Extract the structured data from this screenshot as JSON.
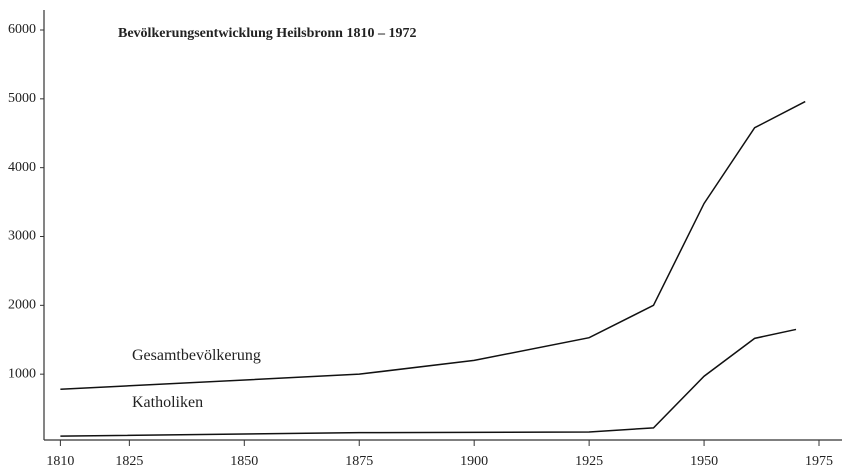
{
  "chart_data": {
    "type": "line",
    "title": "Bevölkerungsentwicklung Heilsbronn 1810 – 1972",
    "series": [
      {
        "name": "Gesamtbevölkerung",
        "color": "#111111",
        "x": [
          1810,
          1875,
          1900,
          1925,
          1939,
          1950,
          1961,
          1972
        ],
        "values": [
          780,
          1000,
          1200,
          1530,
          2000,
          3480,
          4580,
          4960
        ]
      },
      {
        "name": "Katholiken",
        "color": "#111111",
        "x": [
          1810,
          1875,
          1925,
          1939,
          1950,
          1961,
          1970
        ],
        "values": [
          100,
          150,
          160,
          220,
          970,
          1520,
          1650
        ]
      }
    ],
    "xlim": [
      1806,
      1980
    ],
    "xticks": [
      1810,
      1825,
      1850,
      1875,
      1900,
      1925,
      1950,
      1975
    ],
    "ylim": [
      0,
      6000
    ],
    "yticks": [
      1000,
      2000,
      3000,
      4000,
      5000,
      6000
    ]
  }
}
